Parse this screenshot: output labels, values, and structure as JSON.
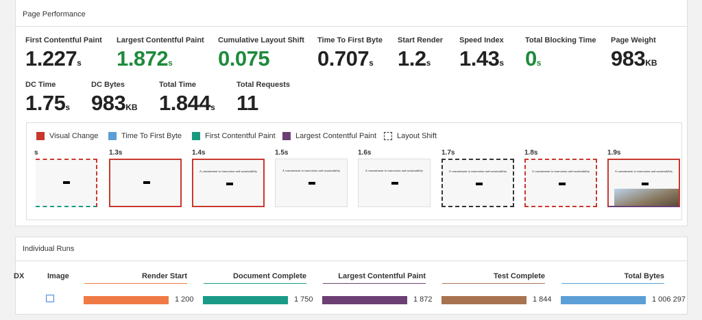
{
  "page_performance": {
    "title": "Page Performance",
    "metrics": [
      {
        "label": "First Contentful Paint",
        "value": "1.227",
        "unit": "s"
      },
      {
        "label": "Largest Contentful Paint",
        "value": "1.872",
        "unit": "s",
        "color": "#1e8a3c"
      },
      {
        "label": "Cumulative Layout Shift",
        "value": "0.075",
        "color": "#1e8a3c"
      },
      {
        "label": "Time To First Byte",
        "value": "0.707",
        "unit": "s"
      },
      {
        "label": "Start Render",
        "value": "1.2",
        "unit": "s"
      },
      {
        "label": "Speed Index",
        "value": "1.43",
        "unit": "s"
      },
      {
        "label": "Total Blocking Time",
        "value": "0",
        "unit": "s",
        "color": "#1e8a3c"
      },
      {
        "label": "Page Weight",
        "value": "983",
        "unit": "KB"
      },
      {
        "label": "DC Time",
        "value": "1.75",
        "unit": "s"
      },
      {
        "label": "DC Bytes",
        "value": "983",
        "unit": "KB"
      },
      {
        "label": "Total Time",
        "value": "1.844",
        "unit": "s"
      },
      {
        "label": "Total Requests",
        "value": "11"
      }
    ]
  },
  "filmstrip": {
    "legend": [
      {
        "label": "Visual Change",
        "color": "#c9372c"
      },
      {
        "label": "Time To First Byte",
        "color": "#5b9fd6"
      },
      {
        "label": "First Contentful Paint",
        "color": "#1a9a7f"
      },
      {
        "label": "Largest Contentful Paint",
        "color": "#6b3f73"
      },
      {
        "label": "Layout Shift"
      }
    ],
    "frames": [
      "s",
      "1.3s",
      "1.4s",
      "1.5s",
      "1.6s",
      "1.7s",
      "1.8s",
      "1.9s"
    ],
    "thumbnail_heading": "A commitment to innovation and sustainability"
  },
  "individual_runs": {
    "title": "Individual Runs",
    "columns": [
      "DX",
      "Image",
      "Render Start",
      "Document Complete",
      "Largest Contentful Paint",
      "Test Complete",
      "Total Bytes"
    ],
    "rows": [
      [
        "1 200",
        "1 750",
        "1 872",
        "1 844",
        "1 006 297"
      ]
    ]
  }
}
